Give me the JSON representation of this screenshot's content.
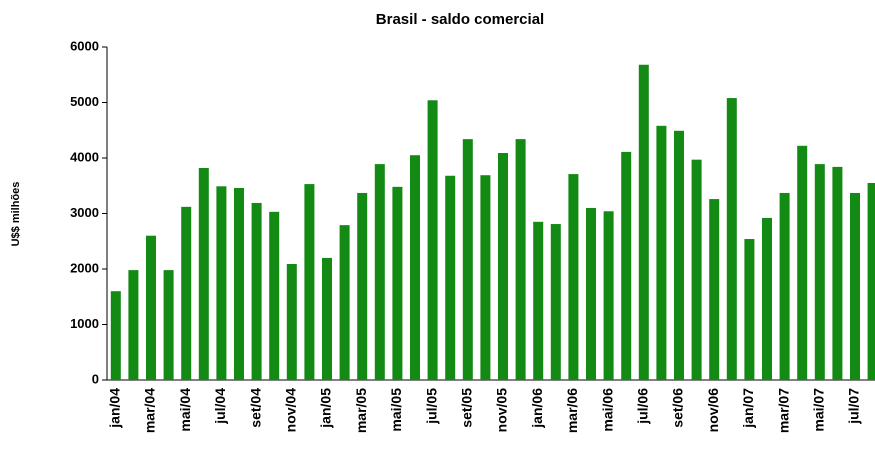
{
  "chart_data": {
    "type": "bar",
    "title": "Brasil - saldo comercial",
    "y_label": "U$$ milhões",
    "categories": [
      "jan/04",
      null,
      "mar/04",
      null,
      "mai/04",
      null,
      "jul/04",
      null,
      "set/04",
      null,
      "nov/04",
      null,
      "jan/05",
      null,
      "mar/05",
      null,
      "mai/05",
      null,
      "jul/05",
      null,
      "set/05",
      null,
      "nov/05",
      null,
      "jan/06",
      null,
      "mar/06",
      null,
      "mai/06",
      null,
      "jul/06",
      null,
      "set/06",
      null,
      "nov/06",
      null,
      "jan/07",
      null,
      "mar/07",
      null,
      "mai/07",
      null,
      "jul/07",
      null
    ],
    "values": [
      1600,
      1980,
      2600,
      1980,
      3120,
      3820,
      3490,
      3460,
      3190,
      3030,
      2090,
      3530,
      2200,
      2790,
      3370,
      3890,
      3480,
      4050,
      5040,
      3680,
      4340,
      3690,
      4090,
      4340,
      2850,
      2810,
      3710,
      3100,
      3040,
      4110,
      5680,
      4580,
      4490,
      3970,
      3260,
      5080,
      2540,
      2920,
      3370,
      4220,
      3890,
      3840,
      3370,
      3550
    ],
    "color": "#138a13",
    "ylim": [
      0,
      6000
    ],
    "yticks": [
      0,
      1000,
      2000,
      3000,
      4000,
      5000,
      6000
    ],
    "grid": false
  }
}
